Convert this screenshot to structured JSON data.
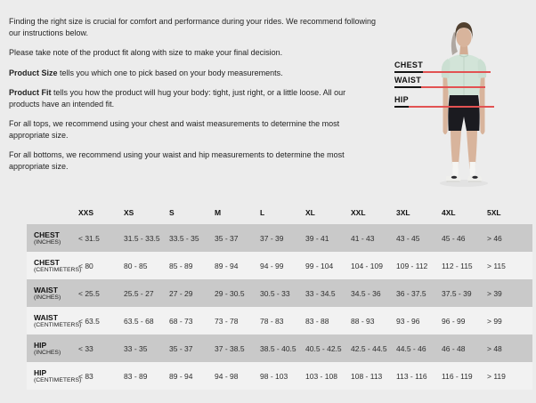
{
  "colors": {
    "page_bg": "#ececec",
    "accent_red": "#e25252",
    "row_shaded": "#c9c9c9",
    "row_light": "#f2f2f2",
    "jersey_mint": "#d2e4d8",
    "shorts_black": "#1b1b20"
  },
  "intro": {
    "paragraphs": [
      {
        "lead": "",
        "text": "Finding the right size is crucial for comfort and performance during your rides. We recommend following our instructions below."
      },
      {
        "lead": "",
        "text": "Please take note of the product fit along with size to make your final decision."
      },
      {
        "lead": "Product Size",
        "text": " tells you which one to pick based on your body measurements."
      },
      {
        "lead": "Product Fit",
        "text": " tells you how the product will hug your body: tight, just right, or a little loose. All our products have an intended fit."
      },
      {
        "lead": "",
        "text": "For all tops, we recommend using your chest and waist measurements to determine the most appropriate size."
      },
      {
        "lead": "",
        "text": "For all bottoms, we recommend using your waist and hip measurements to determine the most appropriate size."
      }
    ]
  },
  "figure": {
    "labels": [
      "CHEST",
      "WAIST",
      "HIP"
    ]
  },
  "table": {
    "size_headers": [
      "XXS",
      "XS",
      "S",
      "M",
      "L",
      "XL",
      "XXL",
      "3XL",
      "4XL",
      "5XL"
    ],
    "rows": [
      {
        "measure": "CHEST",
        "unit": "(INCHES)",
        "shaded": true,
        "values": [
          "< 31.5",
          "31.5 - 33.5",
          "33.5 - 35",
          "35 - 37",
          "37 - 39",
          "39 - 41",
          "41 - 43",
          "43 - 45",
          "45 - 46",
          "> 46"
        ]
      },
      {
        "measure": "CHEST",
        "unit": "(CENTIMETERS)",
        "shaded": false,
        "values": [
          "< 80",
          "80 - 85",
          "85 - 89",
          "89 - 94",
          "94 - 99",
          "99 - 104",
          "104 - 109",
          "109 - 112",
          "112 - 115",
          "> 115"
        ]
      },
      {
        "measure": "WAIST",
        "unit": "(INCHES)",
        "shaded": true,
        "values": [
          "< 25.5",
          "25.5 - 27",
          "27 - 29",
          "29 - 30.5",
          "30.5 - 33",
          "33 - 34.5",
          "34.5 - 36",
          "36 - 37.5",
          "37.5 - 39",
          "> 39"
        ]
      },
      {
        "measure": "WAIST",
        "unit": "(CENTIMETERS)",
        "shaded": false,
        "values": [
          "< 63.5",
          "63.5 - 68",
          "68 - 73",
          "73 - 78",
          "78 - 83",
          "83 - 88",
          "88 - 93",
          "93 - 96",
          "96 - 99",
          "> 99"
        ]
      },
      {
        "measure": "HIP",
        "unit": "(INCHES)",
        "shaded": true,
        "values": [
          "< 33",
          "33 - 35",
          "35 - 37",
          "37 - 38.5",
          "38.5 - 40.5",
          "40.5 - 42.5",
          "42.5 - 44.5",
          "44.5 - 46",
          "46 - 48",
          "> 48"
        ]
      },
      {
        "measure": "HIP",
        "unit": "(CENTIMETERS)",
        "shaded": false,
        "values": [
          "< 83",
          "83 - 89",
          "89 - 94",
          "94 - 98",
          "98 - 103",
          "103 - 108",
          "108 - 113",
          "113 - 116",
          "116 - 119",
          "> 119"
        ]
      }
    ]
  }
}
